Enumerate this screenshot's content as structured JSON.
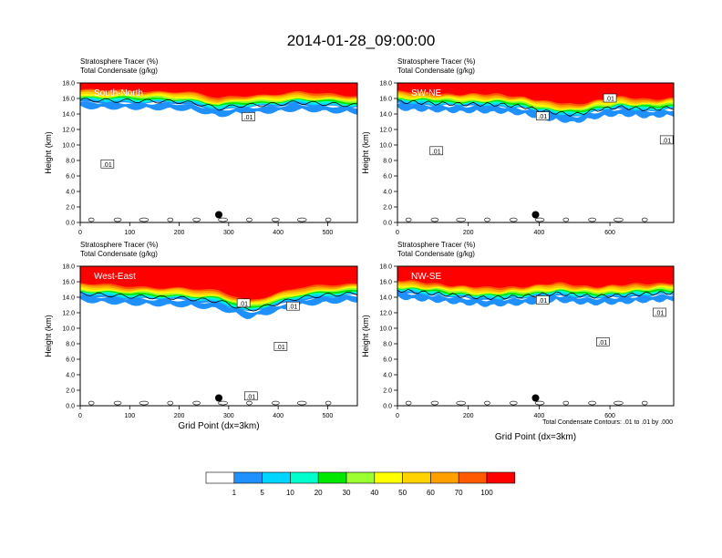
{
  "title": "2014-01-28_09:00:00",
  "panel_header": {
    "line1": "Stratosphere Tracer   (%)",
    "line2": "Total Condensate   (g/kg)"
  },
  "ylabel": "Height (km)",
  "xlabel": "Grid Point (dx=3km)",
  "footnote": "Total Condensate Contours: .01 to .01 by .000",
  "contour_label": ".01",
  "colors": {
    "bins": [
      "#ffffff",
      "#1e90ff",
      "#00d4ff",
      "#00ffcc",
      "#00e800",
      "#9cff30",
      "#ffff00",
      "#ffd200",
      "#ffa000",
      "#ff5a00",
      "#ff0000"
    ]
  },
  "colorbar": {
    "labels": [
      "1",
      "5",
      "10",
      "20",
      "30",
      "40",
      "50",
      "60",
      "70",
      "100"
    ]
  },
  "chart_data": [
    {
      "type": "heatmap",
      "name": "South-North",
      "xlim": [
        0,
        560
      ],
      "ylim": [
        0,
        18
      ],
      "xticks": [
        "0",
        "100",
        "200",
        "300",
        "400",
        "500"
      ],
      "xtick_values": [
        0,
        100,
        200,
        300,
        400,
        500
      ],
      "yticks": [
        "0.0",
        "2.0",
        "4.0",
        "6.0",
        "8.0",
        "10.0",
        "12.0",
        "14.0",
        "16.0",
        "18.0"
      ],
      "tracer_base": [
        [
          0,
          15.5
        ],
        [
          100,
          15.4
        ],
        [
          200,
          15.3
        ],
        [
          240,
          15.0
        ],
        [
          280,
          14.4
        ],
        [
          320,
          14.8
        ],
        [
          380,
          14.9
        ],
        [
          440,
          15.2
        ],
        [
          500,
          15.0
        ],
        [
          560,
          14.8
        ]
      ],
      "marker": {
        "x": 280,
        "y": 1.0
      },
      "contour_labels": [
        {
          "x": 55,
          "y": 7.5
        },
        {
          "x": 340,
          "y": 13.6
        }
      ]
    },
    {
      "type": "heatmap",
      "name": "SW-NE",
      "xlim": [
        0,
        780
      ],
      "ylim": [
        0,
        18
      ],
      "xticks": [
        "0",
        "200",
        "400",
        "600"
      ],
      "xtick_values": [
        0,
        200,
        400,
        600
      ],
      "yticks": [
        "0.0",
        "2.0",
        "4.0",
        "6.0",
        "8.0",
        "10.0",
        "12.0",
        "14.0",
        "16.0",
        "18.0"
      ],
      "tracer_base": [
        [
          0,
          15.3
        ],
        [
          150,
          15.0
        ],
        [
          300,
          14.9
        ],
        [
          360,
          14.6
        ],
        [
          420,
          14.0
        ],
        [
          500,
          13.6
        ],
        [
          560,
          14.2
        ],
        [
          620,
          14.6
        ],
        [
          700,
          14.3
        ],
        [
          780,
          14.5
        ]
      ],
      "marker": {
        "x": 390,
        "y": 1.0
      },
      "contour_labels": [
        {
          "x": 110,
          "y": 9.2
        },
        {
          "x": 410,
          "y": 13.7
        },
        {
          "x": 600,
          "y": 16.0
        },
        {
          "x": 760,
          "y": 10.6
        }
      ]
    },
    {
      "type": "heatmap",
      "name": "West-East",
      "xlim": [
        0,
        560
      ],
      "ylim": [
        0,
        18
      ],
      "xticks": [
        "0",
        "100",
        "200",
        "300",
        "400",
        "500"
      ],
      "xtick_values": [
        0,
        100,
        200,
        300,
        400,
        500
      ],
      "yticks": [
        "0.0",
        "2.0",
        "4.0",
        "6.0",
        "8.0",
        "10.0",
        "12.0",
        "14.0",
        "16.0",
        "18.0"
      ],
      "tracer_base": [
        [
          0,
          14.2
        ],
        [
          100,
          13.8
        ],
        [
          200,
          13.6
        ],
        [
          280,
          13.2
        ],
        [
          340,
          12.0
        ],
        [
          380,
          12.6
        ],
        [
          440,
          13.6
        ],
        [
          500,
          14.0
        ],
        [
          560,
          14.2
        ]
      ],
      "marker": {
        "x": 280,
        "y": 1.0
      },
      "contour_labels": [
        {
          "x": 330,
          "y": 13.2
        },
        {
          "x": 430,
          "y": 12.8
        },
        {
          "x": 405,
          "y": 7.6
        },
        {
          "x": 345,
          "y": 1.2
        }
      ]
    },
    {
      "type": "heatmap",
      "name": "NW-SE",
      "xlim": [
        0,
        780
      ],
      "ylim": [
        0,
        18
      ],
      "xticks": [
        "0",
        "200",
        "400",
        "600"
      ],
      "xtick_values": [
        0,
        200,
        400,
        600
      ],
      "yticks": [
        "0.0",
        "2.0",
        "4.0",
        "6.0",
        "8.0",
        "10.0",
        "12.0",
        "14.0",
        "16.0",
        "18.0"
      ],
      "tracer_base": [
        [
          0,
          14.6
        ],
        [
          150,
          14.0
        ],
        [
          250,
          13.6
        ],
        [
          350,
          13.8
        ],
        [
          450,
          14.2
        ],
        [
          550,
          13.8
        ],
        [
          650,
          14.0
        ],
        [
          720,
          14.2
        ],
        [
          780,
          14.3
        ]
      ],
      "marker": {
        "x": 390,
        "y": 1.0
      },
      "contour_labels": [
        {
          "x": 410,
          "y": 13.6
        },
        {
          "x": 580,
          "y": 8.2
        },
        {
          "x": 740,
          "y": 12.0
        }
      ]
    }
  ]
}
